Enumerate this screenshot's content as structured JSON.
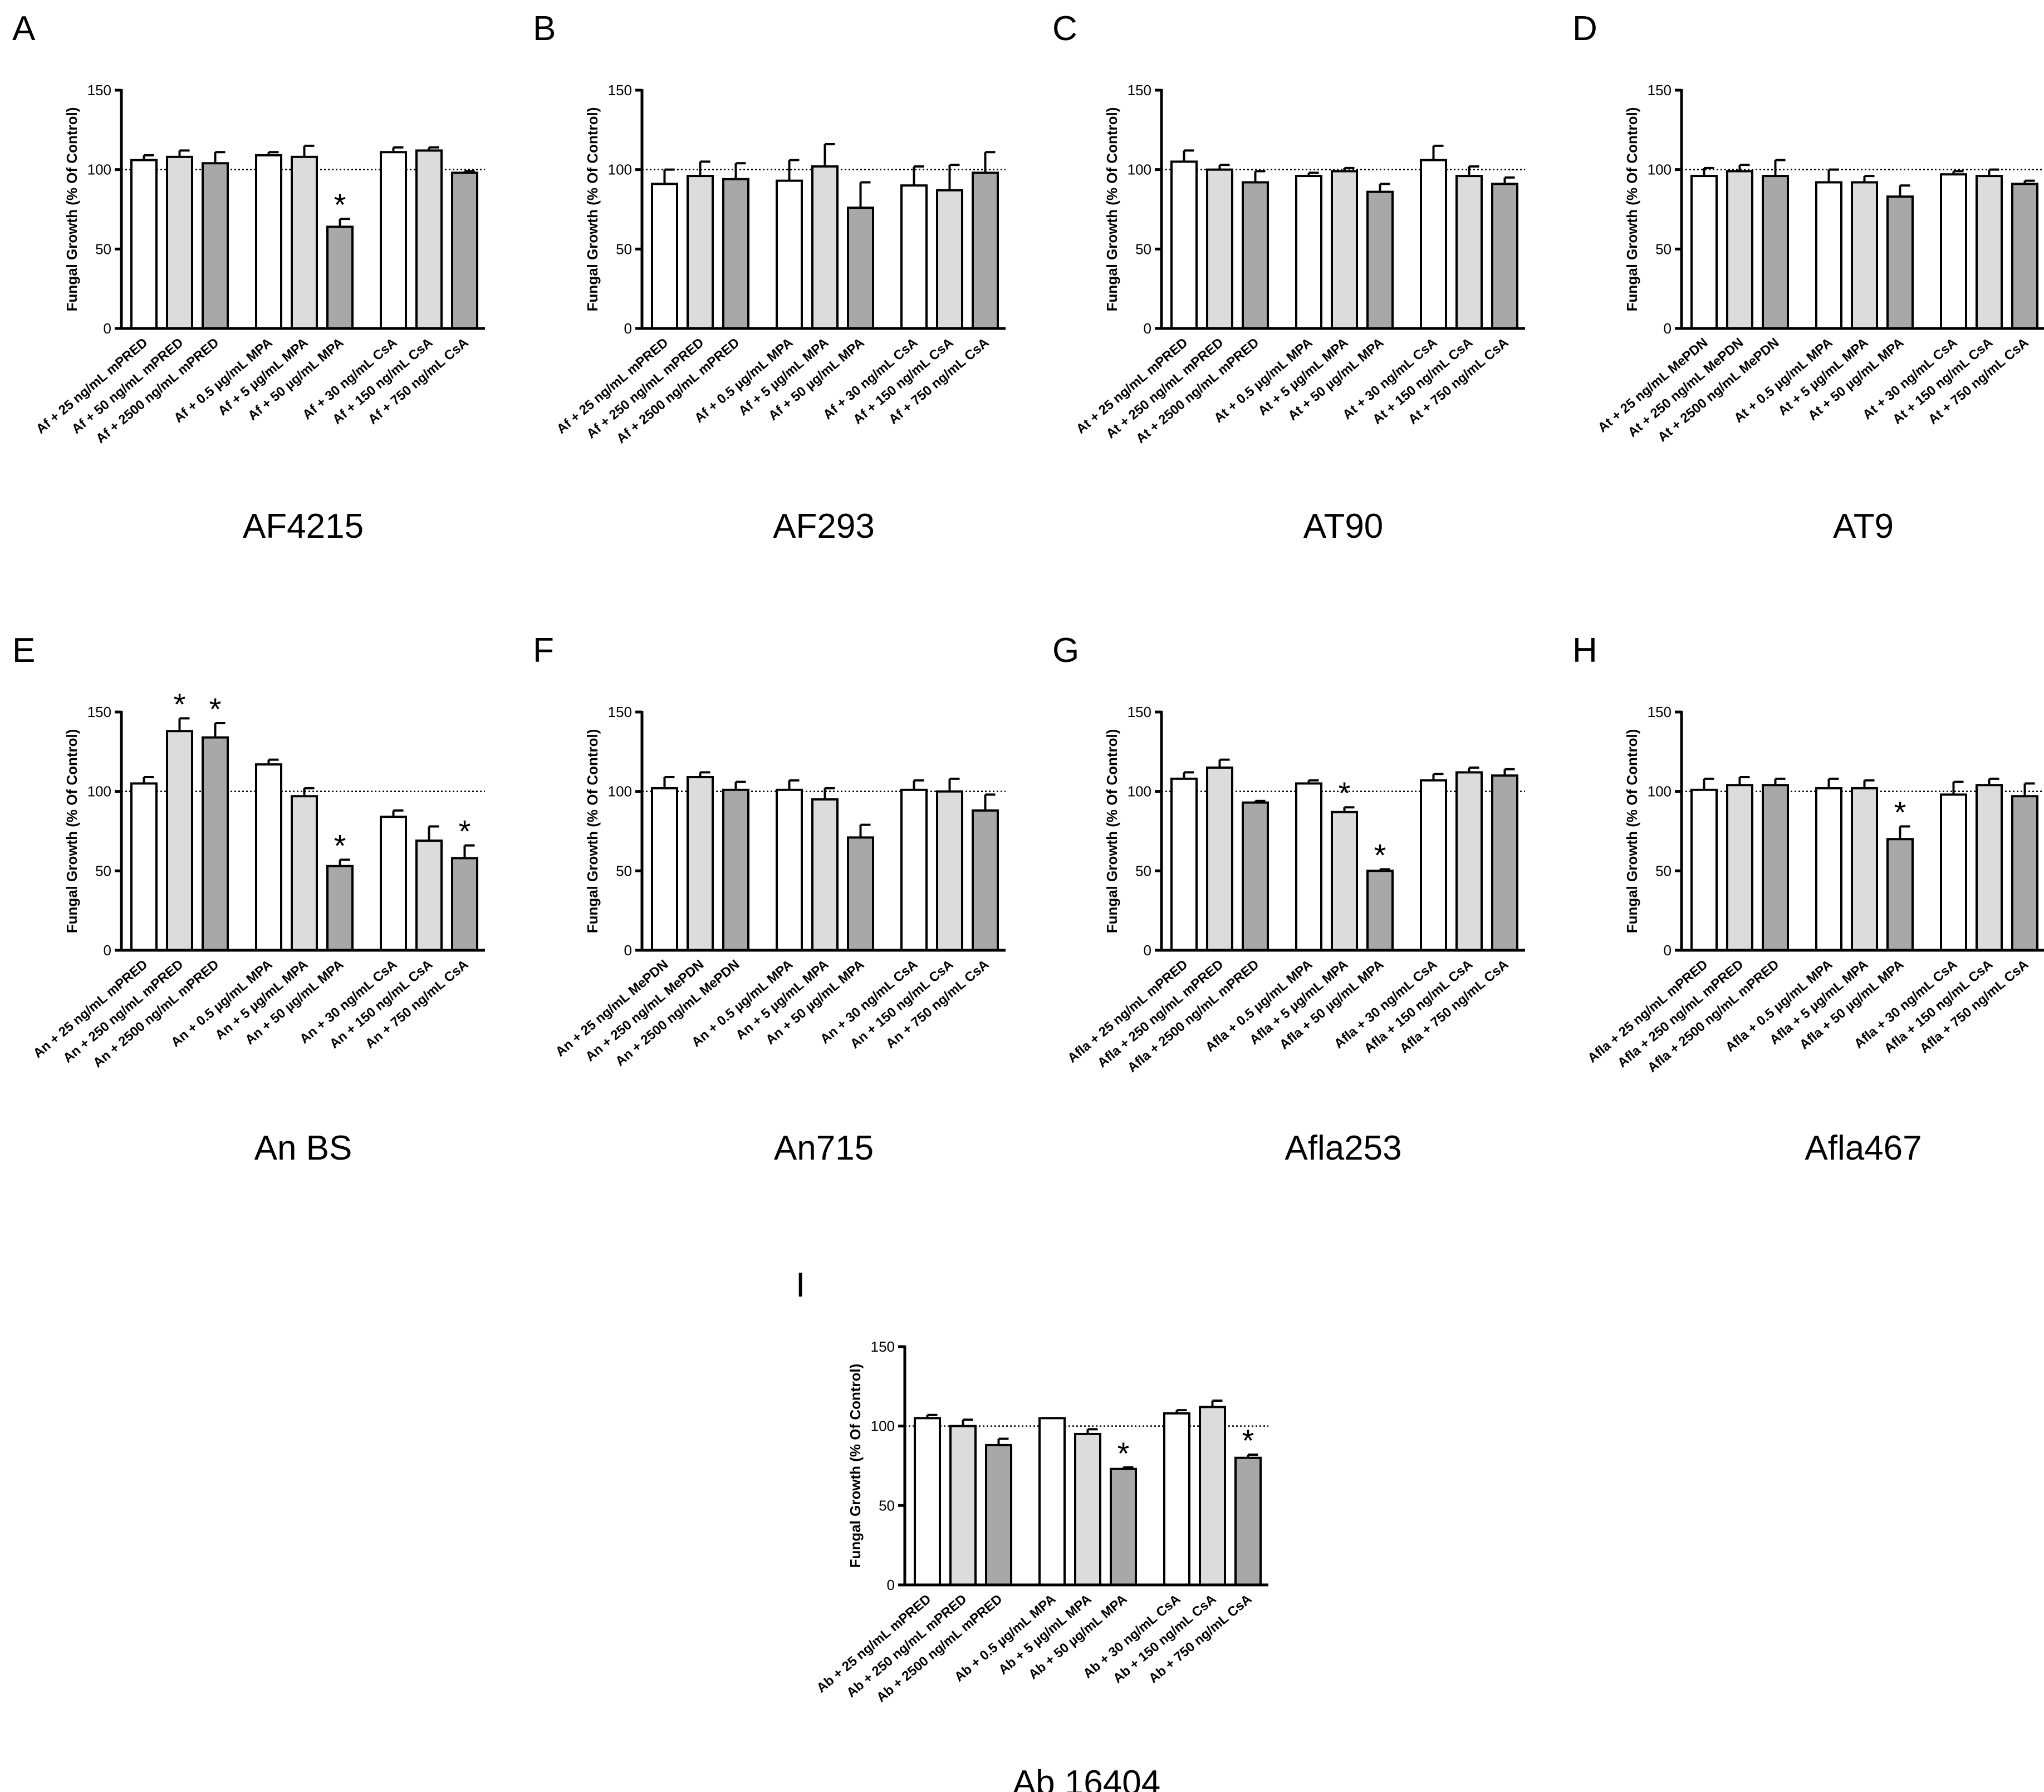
{
  "figure": {
    "ylabel": "Fungal Growth (% Of Control)",
    "reference_line_value": 100,
    "significance_marker": "*",
    "bar_colors": [
      "#ffffff",
      "#dcdcdc",
      "#a8a8a8"
    ]
  },
  "chart_data": [
    {
      "type": "bar",
      "panel": "A",
      "strain": "AF4215",
      "ylabel": "Fungal Growth (% Of Control)",
      "ylim": [
        0,
        150
      ],
      "yticks": [
        0,
        50,
        100,
        150
      ],
      "categories": [
        "Af + 25 ng/mL mPRED",
        "Af + 50 ng/mL mPRED",
        "Af + 2500 ng/mL mPRED",
        "Af + 0.5 µg/mL MPA",
        "Af + 5 µg/mL MPA",
        "Af + 50 µg/mL MPA",
        "Af + 30 ng/mL CsA",
        "Af + 150 ng/mL CsA",
        "Af + 750 ng/mL CsA"
      ],
      "values": [
        106,
        108,
        104,
        109,
        108,
        64,
        111,
        112,
        98
      ],
      "errors": [
        3,
        4,
        7,
        2,
        7,
        5,
        3,
        2,
        1
      ],
      "significant": [
        false,
        false,
        false,
        false,
        false,
        true,
        false,
        false,
        false
      ]
    },
    {
      "type": "bar",
      "panel": "B",
      "strain": "AF293",
      "ylabel": "Fungal Growth (% Of Control)",
      "ylim": [
        0,
        150
      ],
      "yticks": [
        0,
        50,
        100,
        150
      ],
      "categories": [
        "Af + 25 ng/mL mPRED",
        "Af + 250 ng/mL mPRED",
        "Af + 2500 ng/mL mPRED",
        "Af + 0.5 µg/mL MPA",
        "Af + 5 µg/mL MPA",
        "Af + 50 µg/mL MPA",
        "Af + 30 ng/mL CsA",
        "Af + 150 ng/mL CsA",
        "Af + 750 ng/mL CsA"
      ],
      "values": [
        91,
        96,
        94,
        93,
        102,
        76,
        90,
        87,
        98
      ],
      "errors": [
        9,
        9,
        10,
        13,
        14,
        16,
        12,
        16,
        13
      ],
      "significant": [
        false,
        false,
        false,
        false,
        false,
        false,
        false,
        false,
        false
      ]
    },
    {
      "type": "bar",
      "panel": "C",
      "strain": "AT90",
      "ylabel": "Fungal Growth (% Of Control)",
      "ylim": [
        0,
        150
      ],
      "yticks": [
        0,
        50,
        100,
        150
      ],
      "categories": [
        "At + 25 ng/mL mPRED",
        "At + 250 ng/mL mPRED",
        "At + 2500 ng/mL mPRED",
        "At + 0.5 µg/mL MPA",
        "At + 5 µg/mL MPA",
        "At + 50 µg/mL MPA",
        "At + 30 ng/mL CsA",
        "At + 150 ng/mL CsA",
        "At + 750 ng/mL CsA"
      ],
      "values": [
        105,
        100,
        92,
        96,
        99,
        86,
        106,
        96,
        91
      ],
      "errors": [
        7,
        3,
        7,
        2,
        2,
        5,
        9,
        6,
        4
      ],
      "significant": [
        false,
        false,
        false,
        false,
        false,
        false,
        false,
        false,
        false
      ]
    },
    {
      "type": "bar",
      "panel": "D",
      "strain": "AT9",
      "ylabel": "Fungal Growth (% Of Control)",
      "ylim": [
        0,
        150
      ],
      "yticks": [
        0,
        50,
        100,
        150
      ],
      "categories": [
        "At + 25 ng/mL MePDN",
        "At + 250 ng/mL MePDN",
        "At + 2500 ng/mL MePDN",
        "At + 0.5 µg/mL MPA",
        "At + 5 µg/mL MPA",
        "At + 50 µg/mL MPA",
        "At + 30 ng/mL CsA",
        "At + 150 ng/mL CsA",
        "At + 750 ng/mL CsA"
      ],
      "values": [
        96,
        99,
        96,
        92,
        92,
        83,
        97,
        96,
        91
      ],
      "errors": [
        5,
        4,
        10,
        8,
        4,
        7,
        2,
        4,
        2
      ],
      "significant": [
        false,
        false,
        false,
        false,
        false,
        false,
        false,
        false,
        false
      ]
    },
    {
      "type": "bar",
      "panel": "E",
      "strain": "An BS",
      "ylabel": "Fungal Growth (% Of Control)",
      "ylim": [
        0,
        150
      ],
      "yticks": [
        0,
        50,
        100,
        150
      ],
      "categories": [
        "An + 25 ng/mL mPRED",
        "An + 250 ng/mL mPRED",
        "An + 2500 ng/mL mPRED",
        "An + 0.5 µg/mL MPA",
        "An + 5 µg/mL MPA",
        "An + 50 µg/mL MPA",
        "An + 30 ng/mL CsA",
        "An + 150 ng/mL CsA",
        "An + 750 ng/mL CsA"
      ],
      "values": [
        105,
        138,
        134,
        117,
        97,
        53,
        84,
        69,
        58
      ],
      "errors": [
        4,
        8,
        9,
        3,
        5,
        4,
        4,
        9,
        8
      ],
      "significant": [
        false,
        true,
        true,
        false,
        false,
        true,
        false,
        false,
        true
      ]
    },
    {
      "type": "bar",
      "panel": "F",
      "strain": "An715",
      "ylabel": "Fungal Growth (% Of Control)",
      "ylim": [
        0,
        150
      ],
      "yticks": [
        0,
        50,
        100,
        150
      ],
      "categories": [
        "An + 25 ng/mL MePDN",
        "An + 250 ng/mL MePDN",
        "An + 2500 ng/mL MePDN",
        "An + 0.5 µg/mL MPA",
        "An + 5 µg/mL MPA",
        "An + 50 µg/mL MPA",
        "An + 30 ng/mL CsA",
        "An + 150 ng/mL CsA",
        "An + 750 ng/mL CsA"
      ],
      "values": [
        102,
        109,
        101,
        101,
        95,
        71,
        101,
        100,
        88
      ],
      "errors": [
        7,
        3,
        5,
        6,
        7,
        8,
        6,
        8,
        10
      ],
      "significant": [
        false,
        false,
        false,
        false,
        false,
        false,
        false,
        false,
        false
      ]
    },
    {
      "type": "bar",
      "panel": "G",
      "strain": "Afla253",
      "ylabel": "Fungal Growth (% Of Control)",
      "ylim": [
        0,
        150
      ],
      "yticks": [
        0,
        50,
        100,
        150
      ],
      "categories": [
        "Afla + 25 ng/mL mPRED",
        "Afla + 250 ng/mL mPRED",
        "Afla + 2500 ng/mL mPRED",
        "Afla + 0.5 µg/mL MPA",
        "Afla + 5 µg/mL MPA",
        "Afla + 50 µg/mL MPA",
        "Afla + 30 ng/mL CsA",
        "Afla + 150 ng/mL CsA",
        "Afla + 750 ng/mL CsA"
      ],
      "values": [
        108,
        115,
        93,
        105,
        87,
        50,
        107,
        112,
        110
      ],
      "errors": [
        4,
        5,
        1,
        2,
        3,
        1,
        4,
        3,
        4
      ],
      "significant": [
        false,
        false,
        false,
        false,
        true,
        true,
        false,
        false,
        false
      ]
    },
    {
      "type": "bar",
      "panel": "H",
      "strain": "Afla467",
      "ylabel": "Fungal Growth (% Of Control)",
      "ylim": [
        0,
        150
      ],
      "yticks": [
        0,
        50,
        100,
        150
      ],
      "categories": [
        "Afla + 25 ng/mL mPRED",
        "Afla + 250 ng/mL mPRED",
        "Afla + 2500 ng/mL mPRED",
        "Afla + 0.5 µg/mL MPA",
        "Afla + 5 µg/mL MPA",
        "Afla + 50 µg/mL MPA",
        "Afla + 30 ng/mL CsA",
        "Afla + 150 ng/mL CsA",
        "Afla + 750 ng/mL CsA"
      ],
      "values": [
        101,
        104,
        104,
        102,
        102,
        70,
        98,
        104,
        97
      ],
      "errors": [
        7,
        5,
        4,
        6,
        5,
        8,
        8,
        4,
        8
      ],
      "significant": [
        false,
        false,
        false,
        false,
        false,
        true,
        false,
        false,
        false
      ]
    },
    {
      "type": "bar",
      "panel": "I",
      "strain": "Ab 16404",
      "ylabel": "Fungal Growth (% Of Control)",
      "ylim": [
        0,
        150
      ],
      "yticks": [
        0,
        50,
        100,
        150
      ],
      "categories": [
        "Ab + 25 ng/mL mPRED",
        "Ab + 250 ng/mL mPRED",
        "Ab + 2500 ng/mL mPRED",
        "Ab + 0.5 µg/mL MPA",
        "Ab + 5 µg/mL MPA",
        "Ab + 50 µg/mL MPA",
        "Ab + 30 ng/mL CsA",
        "Ab + 150 ng/mL CsA",
        "Ab + 750 ng/mL CsA"
      ],
      "values": [
        105,
        100,
        88,
        105,
        95,
        73,
        108,
        112,
        80
      ],
      "errors": [
        2,
        4,
        4,
        0,
        3,
        1,
        2,
        4,
        2
      ],
      "significant": [
        false,
        false,
        false,
        false,
        false,
        true,
        false,
        false,
        true
      ]
    }
  ]
}
